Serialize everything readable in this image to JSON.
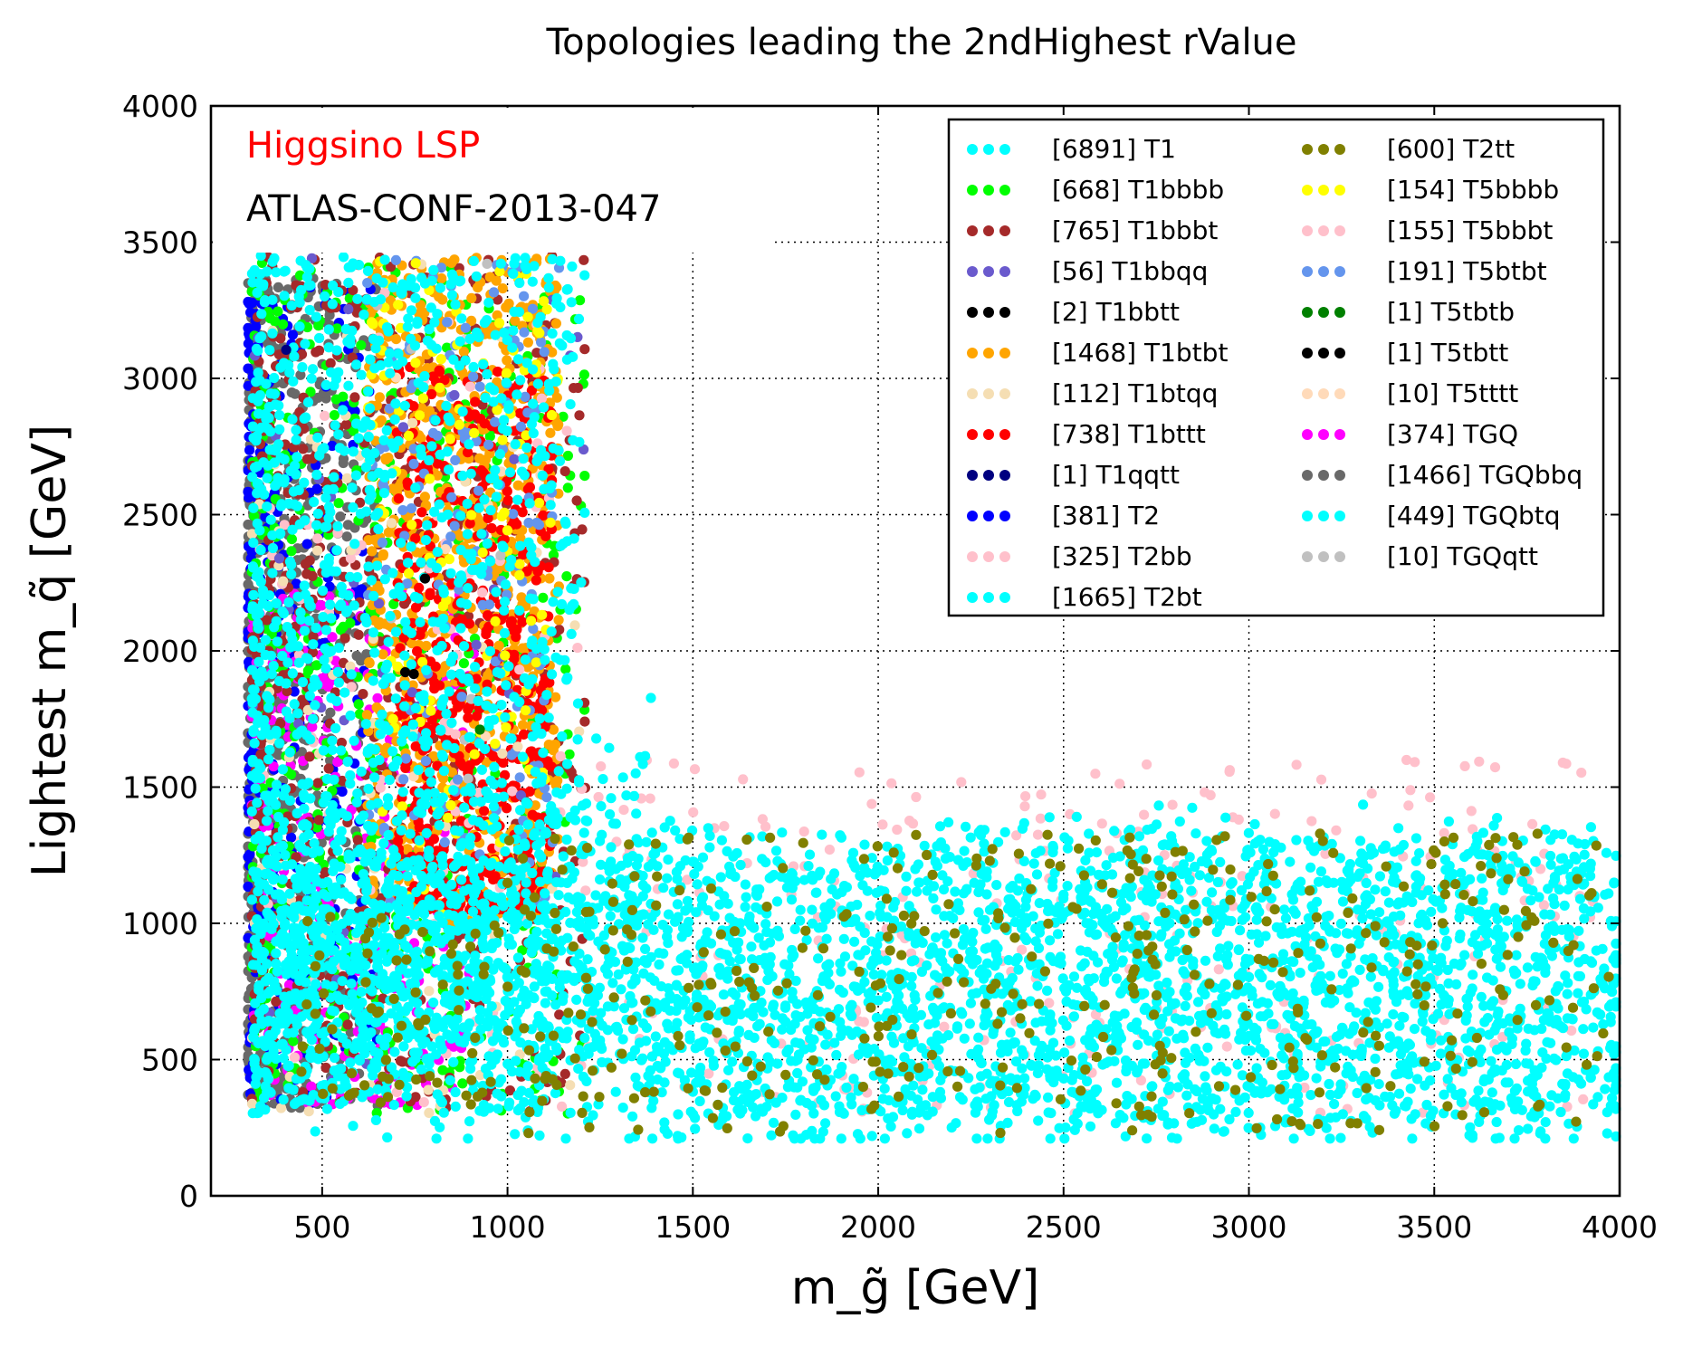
{
  "chart_data": {
    "type": "scatter",
    "title": "Topologies leading the 2ndHighest rValue",
    "xlabel": "m_g̃ [GeV]",
    "ylabel": "Lightest m_q̃ [GeV]",
    "xlim": [
      200,
      4000
    ],
    "ylim": [
      0,
      4000
    ],
    "x_ticks": [
      500,
      1000,
      1500,
      2000,
      2500,
      3000,
      3500,
      4000
    ],
    "y_ticks": [
      0,
      500,
      1000,
      1500,
      2000,
      2500,
      3000,
      3500,
      4000
    ],
    "grid": true,
    "legend_position": "top-right",
    "legend_columns": 2,
    "annotations": [
      {
        "text": "Higgsino LSP",
        "color": "#ff0000"
      },
      {
        "text": "ATLAS-CONF-2013-047",
        "color": "#000000"
      }
    ],
    "series": [
      {
        "name": "[6891] T1",
        "count": 6891,
        "color": "#00ffff"
      },
      {
        "name": "[668] T1bbbb",
        "count": 668,
        "color": "#00ff00"
      },
      {
        "name": "[765] T1bbbt",
        "count": 765,
        "color": "#a52a2a"
      },
      {
        "name": "[56] T1bbqq",
        "count": 56,
        "color": "#6a5acd"
      },
      {
        "name": "[2] T1bbtt",
        "count": 2,
        "color": "#000000"
      },
      {
        "name": "[1468] T1btbt",
        "count": 1468,
        "color": "#ffa500"
      },
      {
        "name": "[112] T1btqq",
        "count": 112,
        "color": "#f5deb3"
      },
      {
        "name": "[738] T1bttt",
        "count": 738,
        "color": "#ff0000"
      },
      {
        "name": "[1] T1qqtt",
        "count": 1,
        "color": "#000080"
      },
      {
        "name": "[381] T2",
        "count": 381,
        "color": "#0000ff"
      },
      {
        "name": "[325] T2bb",
        "count": 325,
        "color": "#ffc0cb"
      },
      {
        "name": "[1665] T2bt",
        "count": 1665,
        "color": "#00ffff"
      },
      {
        "name": "[600] T2tt",
        "count": 600,
        "color": "#808000"
      },
      {
        "name": "[154] T5bbbb",
        "count": 154,
        "color": "#ffff00"
      },
      {
        "name": "[155] T5bbbt",
        "count": 155,
        "color": "#ffc0cb"
      },
      {
        "name": "[191] T5btbt",
        "count": 191,
        "color": "#6495ed"
      },
      {
        "name": "[1] T5tbtb",
        "count": 1,
        "color": "#008000"
      },
      {
        "name": "[1] T5tbtt",
        "count": 1,
        "color": "#000000"
      },
      {
        "name": "[10] T5tttt",
        "count": 10,
        "color": "#ffdab9"
      },
      {
        "name": "[374] TGQ",
        "count": 374,
        "color": "#ff00ff"
      },
      {
        "name": "[1466] TGQbbq",
        "count": 1466,
        "color": "#696969"
      },
      {
        "name": "[449] TGQbtq",
        "count": 449,
        "color": "#00ffff"
      },
      {
        "name": "[10] TGQqtt",
        "count": 10,
        "color": "#c0c0c0"
      }
    ]
  }
}
